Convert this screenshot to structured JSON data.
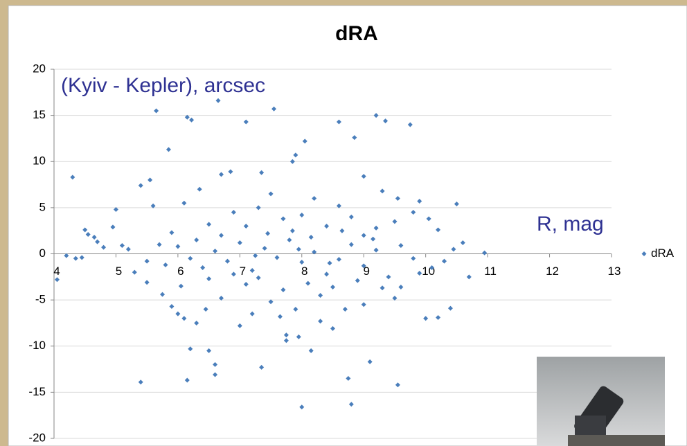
{
  "chart_data": {
    "type": "scatter",
    "title": "dRA",
    "annotations": [
      "(Kyiv - Kepler), arcsec",
      "R, mag"
    ],
    "xlim": [
      4,
      13
    ],
    "xticks": [
      4,
      5,
      6,
      7,
      8,
      9,
      10,
      11,
      12,
      13
    ],
    "ylim": [
      -20,
      20
    ],
    "yticks": [
      -20,
      -15,
      -10,
      -5,
      0,
      5,
      10,
      15,
      20
    ],
    "grid": true,
    "legend": "right",
    "series": [
      {
        "name": "dRA",
        "color": "#4a7ebb",
        "x": [
          4.3,
          5.65,
          6.15,
          6.22,
          6.65,
          7.1,
          7.55,
          8.6,
          9.2,
          9.35,
          9.75,
          5.85,
          8.05,
          8.85,
          7.9,
          7.85,
          5.4,
          6.15,
          8.0,
          8.8,
          8.75,
          9.55,
          7.35,
          6.6,
          6.6,
          6.5,
          6.2,
          8.15,
          9.1,
          7.75,
          7.75,
          7.95,
          4.05,
          10.95,
          10.7,
          10.5,
          10.4,
          10.0,
          10.2,
          6.7,
          6.85,
          7.35,
          9.0,
          5.4,
          5.55,
          6.35,
          9.3,
          9.55,
          9.9,
          5.0,
          4.95,
          4.5,
          4.55,
          4.65,
          4.7,
          4.8,
          4.2,
          4.35,
          4.45,
          5.1,
          5.2,
          5.3,
          5.5,
          5.75,
          5.9,
          6.0,
          6.1,
          6.3,
          6.45,
          6.7,
          7.0,
          7.2,
          7.5,
          7.65,
          7.9,
          8.3,
          8.5,
          8.7,
          9.0,
          9.5,
          9.6,
          9.9,
          10.1,
          10.3,
          10.45,
          10.6,
          10.2,
          10.05,
          9.8,
          9.5,
          9.2,
          9.0,
          8.8,
          8.6,
          8.4,
          8.2,
          8.0,
          7.85,
          7.7,
          7.5,
          7.3,
          7.1,
          6.9,
          6.7,
          6.5,
          6.3,
          6.1,
          5.9,
          5.7,
          5.6,
          6.0,
          6.2,
          6.4,
          6.6,
          6.8,
          7.0,
          7.2,
          7.4,
          7.6,
          7.8,
          8.0,
          8.2,
          8.4,
          8.6,
          8.8,
          9.0,
          9.2,
          9.4,
          9.6,
          9.8,
          7.1,
          7.3,
          7.7,
          8.1,
          8.3,
          8.5,
          8.9,
          9.3,
          6.5,
          6.9,
          5.8,
          5.5,
          6.05,
          7.95,
          8.15,
          7.45,
          8.65,
          9.15,
          7.25,
          8.45
        ],
        "values": [
          8.3,
          15.5,
          14.8,
          14.5,
          16.6,
          14.3,
          15.7,
          14.3,
          15.0,
          14.4,
          14.0,
          11.3,
          12.2,
          12.6,
          10.7,
          10.0,
          -13.9,
          -13.7,
          -16.6,
          -16.3,
          -13.5,
          -14.2,
          -12.3,
          -12.0,
          -13.1,
          -10.5,
          -10.3,
          -10.5,
          -11.7,
          -8.8,
          -9.4,
          -9.0,
          -2.8,
          0.1,
          -2.5,
          5.4,
          -5.9,
          -7.0,
          -6.9,
          8.6,
          8.9,
          8.8,
          8.4,
          7.4,
          8.0,
          7.0,
          6.8,
          6.0,
          5.7,
          4.8,
          2.9,
          2.6,
          2.1,
          1.8,
          1.3,
          0.7,
          -0.2,
          -0.5,
          -0.4,
          0.9,
          0.5,
          -2.0,
          -3.1,
          -4.4,
          -5.7,
          -6.5,
          -7.0,
          -7.5,
          -6.0,
          -4.8,
          -7.8,
          -6.5,
          -5.2,
          -6.8,
          -6.0,
          -7.3,
          -8.1,
          -6.0,
          -5.5,
          -4.8,
          -3.6,
          -2.1,
          -1.5,
          -0.8,
          0.5,
          1.2,
          2.6,
          3.8,
          4.5,
          3.5,
          2.8,
          2.0,
          4.0,
          5.2,
          3.0,
          6.0,
          4.2,
          2.5,
          3.8,
          6.5,
          5.0,
          3.0,
          4.5,
          2.0,
          3.2,
          1.5,
          5.5,
          2.3,
          1.0,
          5.2,
          0.8,
          -0.5,
          -1.5,
          0.3,
          -0.8,
          1.2,
          -1.8,
          0.6,
          -0.4,
          1.5,
          -0.9,
          0.2,
          -2.2,
          -0.6,
          1.0,
          -1.3,
          0.4,
          -2.5,
          0.9,
          -0.5,
          -3.3,
          -2.6,
          -3.9,
          -3.2,
          -4.5,
          -3.6,
          -2.9,
          -3.7,
          -2.7,
          -2.2,
          -1.2,
          -0.8,
          -3.5,
          0.5,
          1.8,
          2.2,
          2.5,
          1.6,
          -0.2,
          -1.0
        ]
      }
    ]
  }
}
